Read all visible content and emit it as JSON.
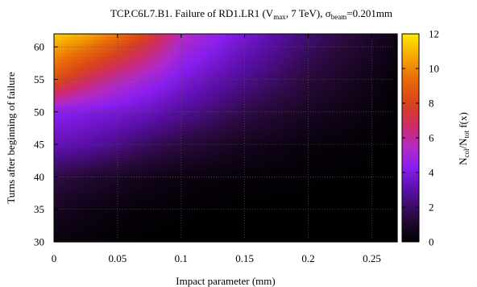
{
  "chart_data": {
    "type": "heatmap",
    "title": {
      "prefix": "TCP.C6L7.B1. Failure of RD1.LR1 (V",
      "sub1": "max",
      "mid": ", 7 TeV), σ",
      "sub2": "beam",
      "suffix": "=0.201mm"
    },
    "xlabel": "Impact parameter (mm)",
    "ylabel": "Turns after beginning of failure",
    "colorbar_label": {
      "p1": "N",
      "s1": "col",
      "p2": "/N",
      "s2": "tot",
      "p3": " f(x)"
    },
    "xlim": [
      0,
      0.27
    ],
    "ylim": [
      30,
      62
    ],
    "zlim": [
      0,
      12
    ],
    "x_ticks": [
      0,
      0.05,
      0.1,
      0.15,
      0.2,
      0.25
    ],
    "x_tick_labels": [
      "0",
      "0.05",
      "0.1",
      "0.15",
      "0.2",
      "0.25"
    ],
    "y_ticks": [
      30,
      35,
      40,
      45,
      50,
      55,
      60
    ],
    "y_tick_labels": [
      "30",
      "35",
      "40",
      "45",
      "50",
      "55",
      "60"
    ],
    "colorbar_ticks": [
      0,
      2,
      4,
      6,
      8,
      10,
      12
    ],
    "colorbar_tick_labels": [
      "0",
      "2",
      "4",
      "6",
      "8",
      "10",
      "12"
    ],
    "grid": true,
    "colormap": "black-purple-red-orange-yellow",
    "field_samples": [
      {
        "turn": 62,
        "impact": [
          0,
          0.025,
          0.05,
          0.075,
          0.1,
          0.15,
          0.2,
          0.25
        ],
        "value": [
          11.5,
          10.8,
          9.6,
          7.8,
          5.6,
          3.8,
          2.2,
          1.0
        ]
      },
      {
        "turn": 55,
        "impact": [
          0,
          0.025,
          0.05,
          0.075,
          0.1,
          0.15,
          0.2,
          0.25
        ],
        "value": [
          8.5,
          7.0,
          5.8,
          4.9,
          4.0,
          2.6,
          1.4,
          0.5
        ]
      },
      {
        "turn": 50,
        "impact": [
          0,
          0.025,
          0.05,
          0.075,
          0.1,
          0.15,
          0.2,
          0.25
        ],
        "value": [
          4.4,
          4.1,
          3.8,
          3.4,
          2.8,
          1.6,
          0.8,
          0.3
        ]
      },
      {
        "turn": 45,
        "impact": [
          0,
          0.025,
          0.05,
          0.075,
          0.1,
          0.15,
          0.2,
          0.25
        ],
        "value": [
          3.3,
          3.0,
          2.5,
          1.9,
          1.4,
          0.7,
          0.3,
          0.1
        ]
      },
      {
        "turn": 40,
        "impact": [
          0,
          0.025,
          0.05,
          0.075,
          0.1,
          0.15,
          0.2,
          0.25
        ],
        "value": [
          1.6,
          1.2,
          0.9,
          0.6,
          0.4,
          0.2,
          0.1,
          0.0
        ]
      },
      {
        "turn": 35,
        "impact": [
          0,
          0.025,
          0.05,
          0.075,
          0.1,
          0.15,
          0.2,
          0.25
        ],
        "value": [
          0.8,
          0.5,
          0.3,
          0.2,
          0.1,
          0.0,
          0.0,
          0.0
        ]
      },
      {
        "turn": 30,
        "impact": [
          0,
          0.025,
          0.05,
          0.075,
          0.1,
          0.15,
          0.2,
          0.25
        ],
        "value": [
          0.3,
          0.2,
          0.1,
          0.0,
          0.0,
          0.0,
          0.0,
          0.0
        ]
      }
    ]
  }
}
